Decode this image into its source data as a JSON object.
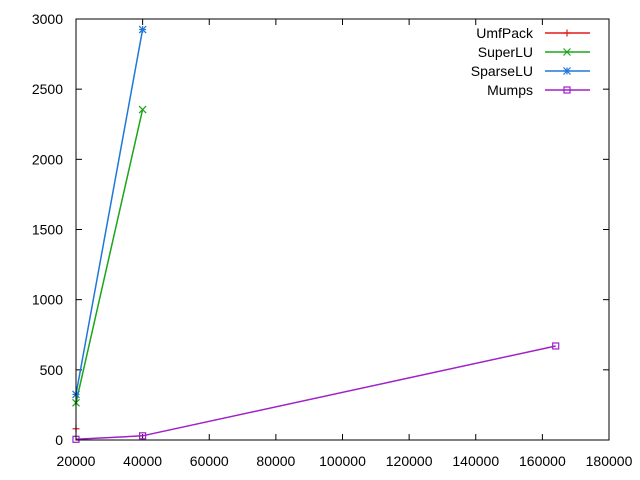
{
  "chart_data": {
    "type": "line",
    "title": "",
    "xlabel": "",
    "ylabel": "",
    "xlim": [
      20000,
      180000
    ],
    "ylim": [
      0,
      3000
    ],
    "xticks": [
      20000,
      40000,
      60000,
      80000,
      100000,
      120000,
      140000,
      160000,
      180000
    ],
    "yticks": [
      0,
      500,
      1000,
      1500,
      2000,
      2500,
      3000
    ],
    "grid": false,
    "legend_position": "top-right",
    "series": [
      {
        "name": "UmfPack",
        "color": "#e31a1c",
        "marker": "plus",
        "points": [
          [
            20000,
            80
          ]
        ]
      },
      {
        "name": "SuperLU",
        "color": "#1aa51a",
        "marker": "cross",
        "points": [
          [
            20000,
            265
          ],
          [
            40000,
            2355
          ]
        ]
      },
      {
        "name": "SparseLU",
        "color": "#1f78d8",
        "marker": "star",
        "points": [
          [
            20000,
            325
          ],
          [
            40000,
            2925
          ]
        ]
      },
      {
        "name": "Mumps",
        "color": "#a020c8",
        "marker": "square",
        "points": [
          [
            20000,
            5
          ],
          [
            40000,
            30
          ],
          [
            164000,
            670
          ]
        ]
      }
    ]
  }
}
